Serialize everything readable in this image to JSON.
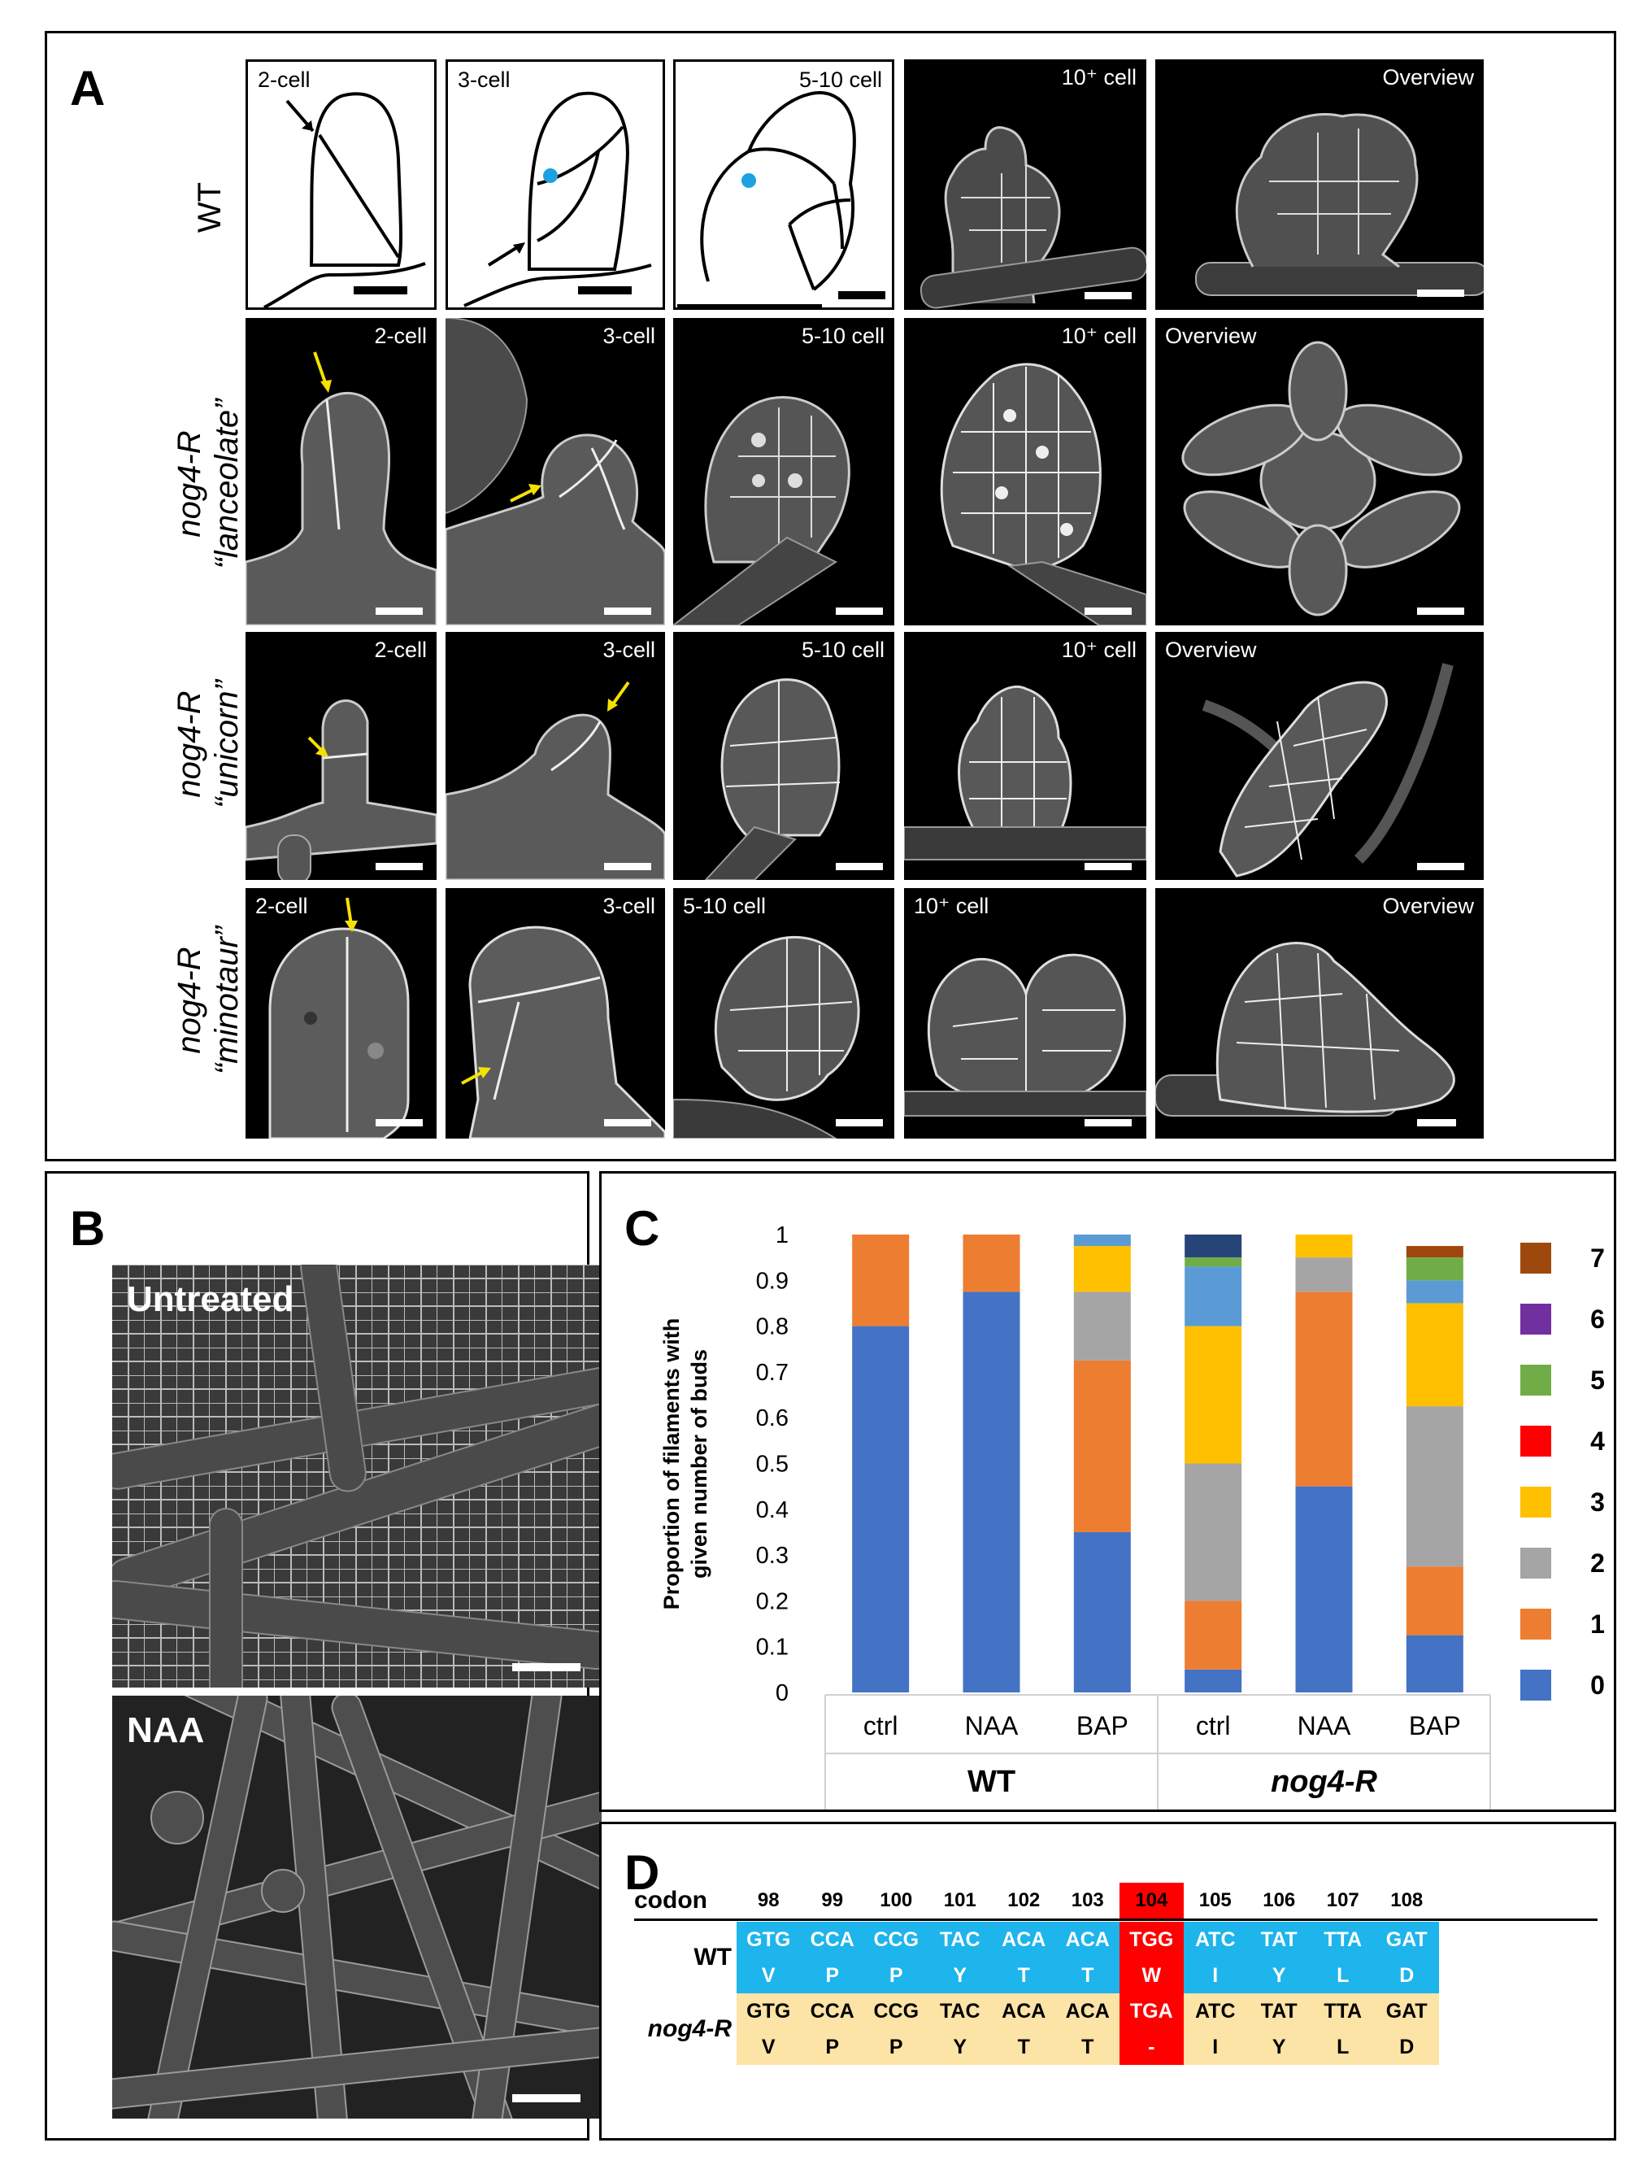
{
  "panel_letters": {
    "a": "A",
    "b": "B",
    "c": "C",
    "d": "D"
  },
  "panel_a": {
    "rows": [
      {
        "genotype": "WT",
        "allele": "",
        "tiles": [
          {
            "label": "2-cell",
            "kind": "drawing"
          },
          {
            "label": "3-cell",
            "kind": "drawing"
          },
          {
            "label": "5-10 cell",
            "kind": "drawing"
          },
          {
            "label": "10⁺ cell",
            "kind": "micrograph"
          },
          {
            "label": "Overview",
            "kind": "micrograph"
          }
        ]
      },
      {
        "genotype": "nog4-R",
        "allele": "“lanceolate”",
        "tiles": [
          {
            "label": "2-cell"
          },
          {
            "label": "3-cell"
          },
          {
            "label": "5-10 cell"
          },
          {
            "label": "10⁺ cell"
          },
          {
            "label": "Overview"
          }
        ]
      },
      {
        "genotype": "nog4-R",
        "allele": "“unicorn”",
        "tiles": [
          {
            "label": "2-cell"
          },
          {
            "label": "3-cell"
          },
          {
            "label": "5-10 cell"
          },
          {
            "label": "10⁺ cell"
          },
          {
            "label": "Overview"
          }
        ]
      },
      {
        "genotype": "nog4-R",
        "allele": "“minotaur”",
        "tiles": [
          {
            "label": "2-cell"
          },
          {
            "label": "3-cell"
          },
          {
            "label": "5-10 cell"
          },
          {
            "label": "10⁺ cell"
          },
          {
            "label": "Overview"
          }
        ]
      }
    ]
  },
  "panel_b": {
    "top_label": "Untreated",
    "bottom_label": "NAA"
  },
  "chart_data": {
    "type": "bar",
    "stacked": true,
    "ylabel_line1": "Proportion of filaments with",
    "ylabel_line2": "given number of  buds",
    "ylim": [
      0,
      1
    ],
    "yticks": [
      "0",
      "0.1",
      "0.2",
      "0.3",
      "0.4",
      "0.5",
      "0.6",
      "0.7",
      "0.8",
      "0.9",
      "1"
    ],
    "categories": [
      "ctrl",
      "NAA",
      "BAP",
      "ctrl",
      "NAA",
      "BAP"
    ],
    "groups": [
      {
        "name": "WT",
        "italic": false
      },
      {
        "name": "nog4-R",
        "italic": true
      }
    ],
    "series": [
      {
        "name": "0",
        "color": "#4472C4",
        "values": [
          0.8,
          0.875,
          0.35,
          0.05,
          0.45,
          0.125
        ]
      },
      {
        "name": "1",
        "color": "#ED7D31",
        "values": [
          0.2,
          0.125,
          0.375,
          0.15,
          0.425,
          0.15
        ]
      },
      {
        "name": "2",
        "color": "#A5A5A5",
        "values": [
          0,
          0,
          0.15,
          0.3,
          0.075,
          0.35
        ]
      },
      {
        "name": "3",
        "color": "#FFC000",
        "values": [
          0,
          0,
          0.1,
          0.3,
          0.05,
          0.225
        ]
      },
      {
        "name": "4",
        "color": "#FF0000",
        "values": [
          0,
          0,
          0,
          0,
          0,
          0
        ]
      },
      {
        "name": "5",
        "color": "#70AD47",
        "values": [
          0,
          0,
          0,
          0.02,
          0,
          0.05
        ]
      },
      {
        "name": "6",
        "color": "#7030A0",
        "values": [
          0,
          0,
          0,
          0,
          0,
          0
        ]
      },
      {
        "name": "7",
        "color": "#9E480E",
        "values": [
          0,
          0,
          0,
          0,
          0,
          0.025
        ]
      }
    ],
    "extra_segment_note": "",
    "extra_segments": {
      "light_blue": {
        "color": "#5B9BD5",
        "values": [
          0,
          0,
          0.025,
          0.13,
          0,
          0.05
        ]
      },
      "dark_blue": {
        "color": "#264478",
        "values": [
          0,
          0,
          0,
          0.05,
          0,
          0
        ]
      }
    }
  },
  "panel_d": {
    "codon_header": "codon",
    "codons": [
      "98",
      "99",
      "100",
      "101",
      "102",
      "103",
      "104",
      "105",
      "106",
      "107",
      "108"
    ],
    "rows": [
      {
        "label": "WT",
        "italic": false,
        "color": "#1EB4EC",
        "nt": [
          "GTG",
          "CCA",
          "CCG",
          "TAC",
          "ACA",
          "ACA",
          "TGG",
          "ATC",
          "TAT",
          "TTA",
          "GAT"
        ],
        "aa": [
          "V",
          "P",
          "P",
          "Y",
          "T",
          "T",
          "W",
          "I",
          "Y",
          "L",
          "D"
        ]
      },
      {
        "label": "nog4-R",
        "italic": true,
        "color": "#FCE3A6",
        "nt": [
          "GTG",
          "CCA",
          "CCG",
          "TAC",
          "ACA",
          "ACA",
          "TGA",
          "ATC",
          "TAT",
          "TTA",
          "GAT"
        ],
        "aa": [
          "V",
          "P",
          "P",
          "Y",
          "T",
          "T",
          "-",
          "I",
          "Y",
          "L",
          "D"
        ]
      }
    ],
    "highlight_codon": "104",
    "highlight_color": "#FF0000"
  }
}
